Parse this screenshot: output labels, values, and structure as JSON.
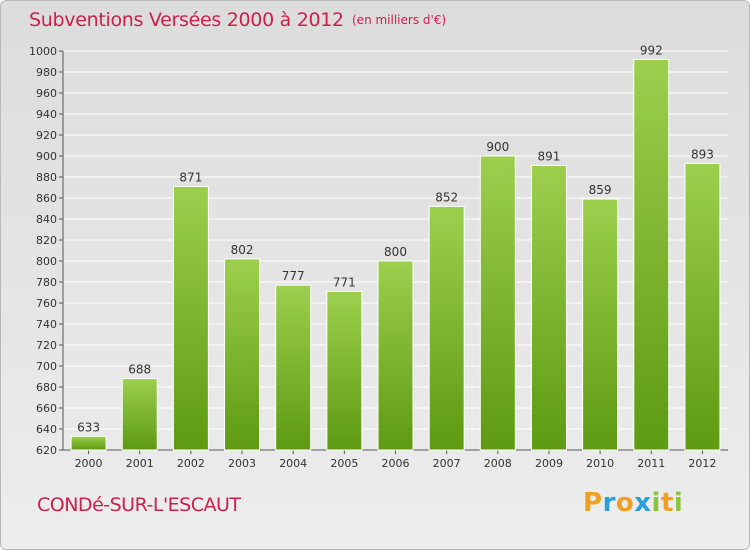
{
  "header": {
    "title": "Subventions Versées 2000 à 2012",
    "unit_note": "(en milliers d'€)"
  },
  "footer": {
    "commune": "CONDé-SUR-L'ESCAUT",
    "logo_letters": [
      "P",
      "r",
      "o",
      "x",
      "i",
      "t",
      "i"
    ],
    "logo_colors": [
      "#f0a020",
      "#2aa0d8",
      "#f0a020",
      "#2aa0d8",
      "#8cc43c",
      "#f0a020",
      "#8cc43c"
    ]
  },
  "colors": {
    "title": "#cc1f4a",
    "bar_light": "#9ccf4d",
    "bar_dark": "#5e9a12"
  },
  "chart_data": {
    "type": "bar",
    "title": "Subventions Versées 2000 à 2012",
    "xlabel": "",
    "ylabel": "",
    "categories": [
      "2000",
      "2001",
      "2002",
      "2003",
      "2004",
      "2005",
      "2006",
      "2007",
      "2008",
      "2009",
      "2010",
      "2011",
      "2012"
    ],
    "values": [
      633,
      688,
      871,
      802,
      777,
      771,
      800,
      852,
      900,
      891,
      859,
      992,
      893
    ],
    "ylim": [
      620,
      1000
    ],
    "yticks": [
      620,
      640,
      660,
      680,
      700,
      720,
      740,
      760,
      780,
      800,
      820,
      840,
      860,
      880,
      900,
      920,
      940,
      960,
      980,
      1000
    ],
    "grid": true
  }
}
